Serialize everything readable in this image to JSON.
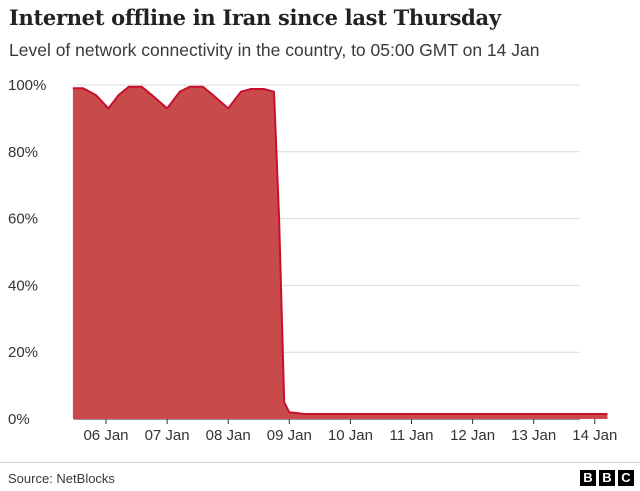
{
  "chart_data": {
    "type": "area",
    "title": "Internet offline in Iran since last Thursday",
    "subtitle": "Level of network connectivity in the country, to 05:00 GMT on 14 Jan",
    "xlabel": "",
    "ylabel": "",
    "ylim": [
      0,
      100
    ],
    "yticks": [
      0,
      20,
      40,
      60,
      80,
      100
    ],
    "ytick_labels": [
      "0%",
      "20%",
      "40%",
      "60%",
      "80%",
      "100%"
    ],
    "xtick_labels": [
      "06 Jan",
      "07 Jan",
      "08 Jan",
      "09 Jan",
      "10 Jan",
      "11 Jan",
      "12 Jan",
      "13 Jan",
      "14 Jan"
    ],
    "grid": true,
    "series": [
      {
        "color": "#c8102e",
        "fill": "#c94a4a",
        "points": [
          {
            "x": "2026-01-05T11:00",
            "y": 99
          },
          {
            "x": "2026-01-05T15:00",
            "y": 99
          },
          {
            "x": "2026-01-05T20:00",
            "y": 97
          },
          {
            "x": "2026-01-06T01:00",
            "y": 93
          },
          {
            "x": "2026-01-06T05:00",
            "y": 97
          },
          {
            "x": "2026-01-06T09:00",
            "y": 99.5
          },
          {
            "x": "2026-01-06T14:00",
            "y": 99.5
          },
          {
            "x": "2026-01-06T18:00",
            "y": 97
          },
          {
            "x": "2026-01-07T00:00",
            "y": 93
          },
          {
            "x": "2026-01-07T05:00",
            "y": 98
          },
          {
            "x": "2026-01-07T09:00",
            "y": 99.5
          },
          {
            "x": "2026-01-07T14:00",
            "y": 99.5
          },
          {
            "x": "2026-01-07T18:00",
            "y": 97
          },
          {
            "x": "2026-01-08T00:00",
            "y": 93
          },
          {
            "x": "2026-01-08T05:00",
            "y": 98
          },
          {
            "x": "2026-01-08T09:00",
            "y": 98.8
          },
          {
            "x": "2026-01-08T14:00",
            "y": 98.8
          },
          {
            "x": "2026-01-08T18:00",
            "y": 98
          },
          {
            "x": "2026-01-08T20:00",
            "y": 60
          },
          {
            "x": "2026-01-08T22:00",
            "y": 5
          },
          {
            "x": "2026-01-09T00:00",
            "y": 2
          },
          {
            "x": "2026-01-09T06:00",
            "y": 1.5
          },
          {
            "x": "2026-01-10T00:00",
            "y": 1.5
          },
          {
            "x": "2026-01-11T00:00",
            "y": 1.5
          },
          {
            "x": "2026-01-12T00:00",
            "y": 1.5
          },
          {
            "x": "2026-01-13T00:00",
            "y": 1.5
          },
          {
            "x": "2026-01-14T00:00",
            "y": 1.5
          },
          {
            "x": "2026-01-14T05:00",
            "y": 1.5
          }
        ]
      }
    ]
  },
  "footer": {
    "source": "Source: NetBlocks",
    "logo_letters": [
      "B",
      "B",
      "C"
    ]
  }
}
